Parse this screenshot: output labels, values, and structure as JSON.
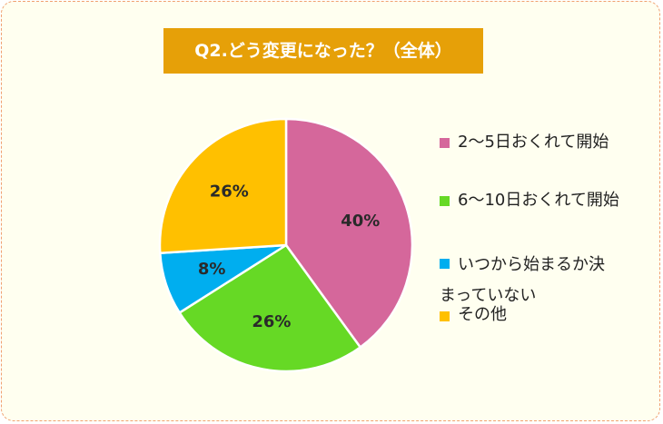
{
  "chart_data": {
    "type": "pie",
    "title": "Q2.どう変更になった？（全体）",
    "slices": [
      {
        "name": "2～5日おくれて開始",
        "value": 40,
        "label": "40%",
        "color": "#d5679b"
      },
      {
        "name": "6～10日おくれて開始",
        "value": 26,
        "label": "26%",
        "color": "#66d925"
      },
      {
        "name": "いつから始まるか決まっていない",
        "value": 8,
        "label": "8%",
        "color": "#00aeef"
      },
      {
        "name": "その他",
        "value": 26,
        "label": "26%",
        "color": "#ffc000"
      }
    ],
    "legend": {
      "placement": "right",
      "lines": [
        [
          "2～5日おくれて開始"
        ],
        [
          "6～10日おくれて開始"
        ],
        [
          "いつから始まるか決",
          "まっていない"
        ],
        [
          "その他"
        ]
      ]
    }
  }
}
